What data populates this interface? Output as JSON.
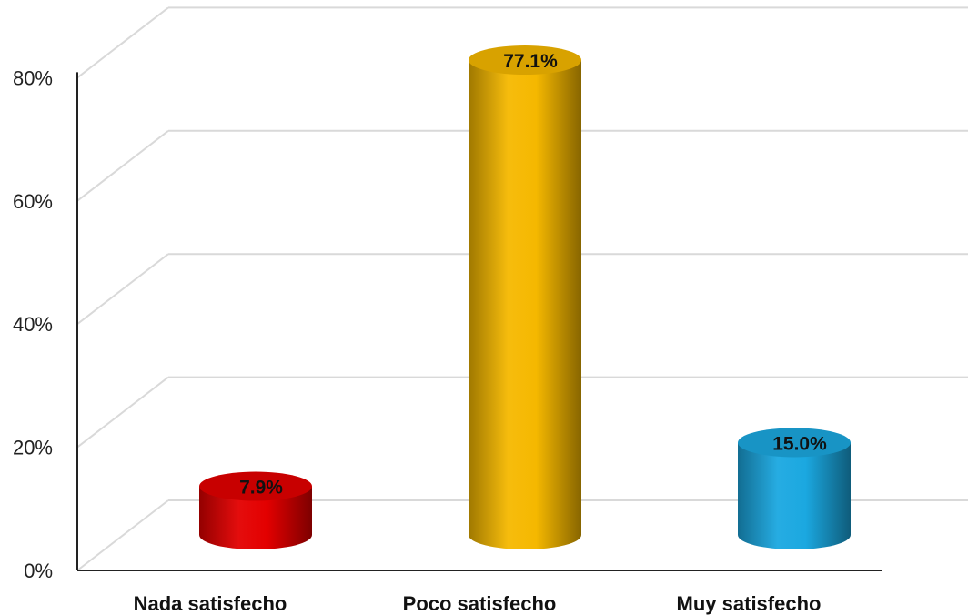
{
  "chart_data": {
    "type": "bar",
    "style": "3d-cylinder",
    "categories": [
      "Nada satisfecho",
      "Poco satisfecho",
      "Muy satisfecho"
    ],
    "values": [
      7.9,
      77.1,
      15.0
    ],
    "data_labels": [
      "7.9%",
      "77.1%",
      "15.0%"
    ],
    "colors": [
      "#e30000",
      "#f5b800",
      "#1ba8e0"
    ],
    "y_ticks": [
      "0%",
      "20%",
      "40%",
      "60%",
      "80%"
    ],
    "ylim": [
      0,
      100
    ],
    "grid": true,
    "legend": "none"
  }
}
